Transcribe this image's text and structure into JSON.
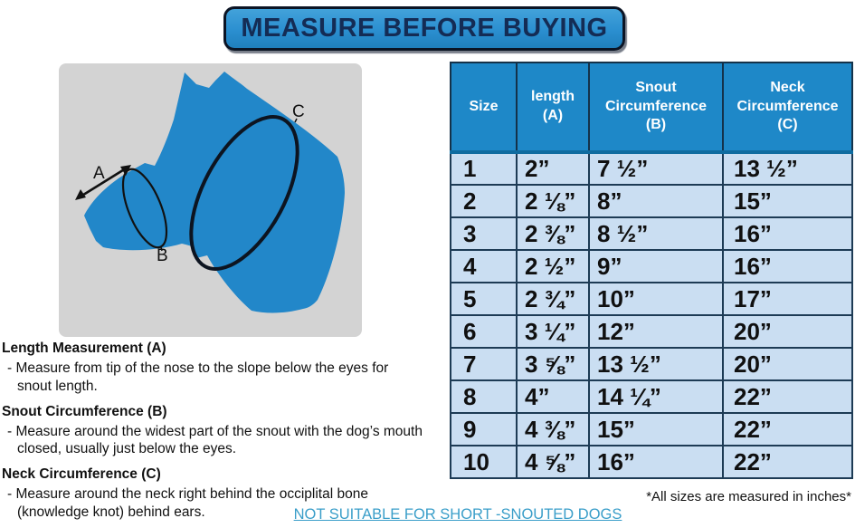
{
  "banner": {
    "title": "MEASURE BEFORE BUYING"
  },
  "diagram": {
    "label_a": "A",
    "label_b": "B",
    "label_c": "C",
    "dog_color": "#2287c9",
    "background_color": "#d3d3d3"
  },
  "table": {
    "col_keys": [
      "size",
      "length",
      "snout",
      "neck"
    ],
    "headers": [
      "Size",
      "length\n(A)",
      "Snout\nCircumference\n(B)",
      "Neck\nCircumference\n(C)"
    ],
    "rows": [
      [
        "1",
        "2”",
        "7 ½”",
        "13 ½”"
      ],
      [
        "2",
        "2 ⅛”",
        "8”",
        "15”"
      ],
      [
        "3",
        "2 ⅜”",
        "8 ½”",
        "16”"
      ],
      [
        "4",
        "2 ½”",
        "9”",
        "16”"
      ],
      [
        "5",
        "2 ¾”",
        "10”",
        "17”"
      ],
      [
        "6",
        "3 ¼”",
        "12”",
        "20”"
      ],
      [
        "7",
        "3 ⅝”",
        "13 ½”",
        "20”"
      ],
      [
        "8",
        "4”",
        "14 ¼”",
        "22”"
      ],
      [
        "9",
        "4 ⅜”",
        "15”",
        "22”"
      ],
      [
        "10",
        "4 ⅝”",
        "16”",
        "22”"
      ]
    ],
    "header_color": "#1e88c8",
    "row_color": "#cadef2"
  },
  "notes": {
    "a": {
      "title": "Length Measurement (A)",
      "line1": "- Measure from tip of the nose to the slope below the eyes for",
      "line2": "snout length."
    },
    "b": {
      "title": "Snout Circumference (B)",
      "line1": "- Measure around the widest part of the snout with the dog’s mouth",
      "line2": "closed, usually just below the eyes."
    },
    "c": {
      "title": "Neck Circumference (C)",
      "line1": "- Measure around the neck right behind the occiplital bone",
      "line2": "(knowledge knot) behind ears."
    }
  },
  "footer": {
    "footnote": "*All sizes are measured in inches*",
    "warning": "NOT SUITABLE FOR SHORT -SNOUTED DOGS"
  }
}
